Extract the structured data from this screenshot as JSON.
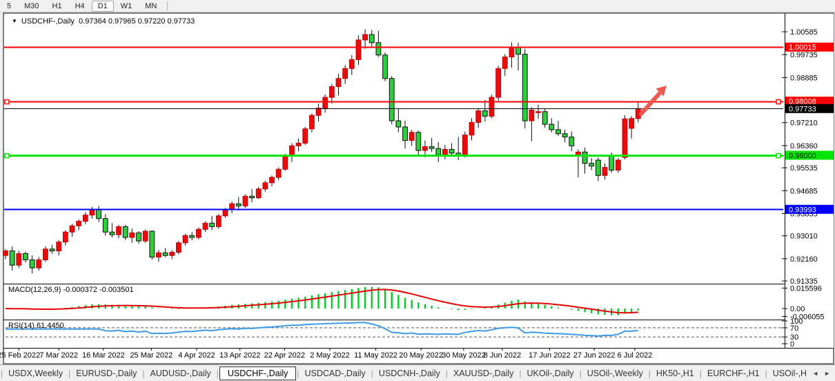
{
  "toolbar": {
    "timeframes": [
      "5",
      "M30",
      "H1",
      "H4",
      "D1",
      "W1",
      "MN"
    ],
    "active_timeframe": "D1"
  },
  "chart": {
    "dropdown_icon": "▼",
    "symbol_period": "USDCHF-,Daily",
    "ohlc_text": "0.97364 0.97965 0.97220 0.97733"
  },
  "indicators": {
    "macd": {
      "label": "MACD(12,26,9) -0.000372 -0.003501",
      "axis_labels": [
        {
          "text": "0.015596",
          "value": 0.015596
        },
        {
          "text": "0.00",
          "value": 0.0
        },
        {
          "text": "-0.006055",
          "value": -0.006055
        }
      ]
    },
    "rsi": {
      "label": "RSI(14) 61.4450",
      "axis_labels": [
        {
          "text": "100",
          "value": 100
        },
        {
          "text": "70",
          "value": 70
        },
        {
          "text": "30",
          "value": 30
        },
        {
          "text": "0",
          "value": 0
        }
      ],
      "levels": [
        70,
        30
      ]
    }
  },
  "colors": {
    "candle_up": "#ea0c0c",
    "candle_up_border": "#c40000",
    "candle_down": "#2fce3c",
    "candle_down_border": "#0b0b0b",
    "wick": "#0b0b0b",
    "macd_histogram": "#00cc22",
    "macd_signal": "#e60000",
    "rsi_line": "#3d9ae8",
    "arrow": "#f0584f",
    "axis_text": "#000000"
  },
  "chart_data": {
    "type": "candlestick",
    "symbol": "USDCHF-",
    "timeframe": "Daily",
    "ylim": {
      "top": 1.01251,
      "bottom": 0.91259
    },
    "y_ticks": [
      1.00585,
      0.99735,
      0.98885,
      0.9721,
      0.9636,
      0.95535,
      0.94685,
      0.93835,
      0.9301,
      0.9216,
      0.91335
    ],
    "x_ticks": [
      {
        "label": "25 Feb 2022",
        "i": 2
      },
      {
        "label": "7 Mar 2022",
        "i": 8
      },
      {
        "label": "16 Mar 2022",
        "i": 14.7
      },
      {
        "label": "25 Mar 2022",
        "i": 21.9
      },
      {
        "label": "4 Apr 2022",
        "i": 28.7
      },
      {
        "label": "13 Apr 2022",
        "i": 35.2
      },
      {
        "label": "22 Apr 2022",
        "i": 41.9
      },
      {
        "label": "2 May 2022",
        "i": 48.7
      },
      {
        "label": "11 May 2022",
        "i": 55.6
      },
      {
        "label": "20 May 2022",
        "i": 62.4
      },
      {
        "label": "30 May 2022",
        "i": 68.8
      },
      {
        "label": "8 Jun 2022",
        "i": 74.6
      },
      {
        "label": "17 Jun 2022",
        "i": 81.7
      },
      {
        "label": "27 Jun 2022",
        "i": 88.4
      },
      {
        "label": "6 Jul 2022",
        "i": 94.5
      }
    ],
    "hlines": [
      {
        "value": 1.00015,
        "label": "1.00015",
        "color": "#fe0000",
        "width": 2,
        "label_bg": "#fe0000",
        "label_fg": "#ffffff",
        "handles": false,
        "name": "resistance-1.00015"
      },
      {
        "value": 0.98008,
        "label": "0.98008",
        "color": "#fe0000",
        "width": 2,
        "label_bg": "#fe0000",
        "label_fg": "#ffffff",
        "handles": true,
        "name": "resistance-0.98008"
      },
      {
        "value": 0.97733,
        "label": "0.97733",
        "color": "#000000",
        "width": 1,
        "label_bg": "#000000",
        "label_fg": "#ffffff",
        "handles": false,
        "name": "current-price-line"
      },
      {
        "value": 0.96,
        "label": "0.96000",
        "color": "#00e600",
        "width": 3,
        "label_bg": "#00e600",
        "label_fg": "#000000",
        "handles": true,
        "name": "support-0.96000"
      },
      {
        "value": 0.93993,
        "label": "0.93993",
        "color": "#0000fe",
        "width": 2,
        "label_bg": "#0000fe",
        "label_fg": "#ffffff",
        "handles": false,
        "name": "support-0.93993"
      }
    ],
    "arrow": {
      "x1": 929,
      "y1": 147,
      "x2": 966,
      "y2": 106
    },
    "macd_params": [
      12,
      26,
      9
    ],
    "rsi_params": [
      14
    ],
    "candles": [
      [
        0.9228,
        0.9252,
        0.9215,
        0.9245
      ],
      [
        0.9245,
        0.9262,
        0.9172,
        0.9192
      ],
      [
        0.9192,
        0.9245,
        0.9182,
        0.9235
      ],
      [
        0.9235,
        0.9242,
        0.9202,
        0.9212
      ],
      [
        0.9212,
        0.9228,
        0.9162,
        0.9182
      ],
      [
        0.9182,
        0.9222,
        0.9172,
        0.9212
      ],
      [
        0.9212,
        0.9262,
        0.9205,
        0.9252
      ],
      [
        0.9252,
        0.9268,
        0.9235,
        0.9245
      ],
      [
        0.9245,
        0.9285,
        0.9228,
        0.9278
      ],
      [
        0.9278,
        0.9322,
        0.9265,
        0.9315
      ],
      [
        0.9315,
        0.9345,
        0.9298,
        0.9338
      ],
      [
        0.9338,
        0.9362,
        0.9322,
        0.9355
      ],
      [
        0.9355,
        0.9388,
        0.9345,
        0.9378
      ],
      [
        0.9378,
        0.9408,
        0.9365,
        0.9398
      ],
      [
        0.9398,
        0.9412,
        0.9352,
        0.9365
      ],
      [
        0.9365,
        0.9382,
        0.9302,
        0.9315
      ],
      [
        0.9315,
        0.9348,
        0.9295,
        0.9305
      ],
      [
        0.9305,
        0.9342,
        0.9292,
        0.9335
      ],
      [
        0.9335,
        0.9342,
        0.9285,
        0.9295
      ],
      [
        0.9295,
        0.9328,
        0.9275,
        0.9312
      ],
      [
        0.9312,
        0.9318,
        0.9272,
        0.9282
      ],
      [
        0.9282,
        0.9325,
        0.9275,
        0.9318
      ],
      [
        0.9318,
        0.9322,
        0.9212,
        0.9222
      ],
      [
        0.9222,
        0.9248,
        0.9205,
        0.9238
      ],
      [
        0.9238,
        0.9255,
        0.9222,
        0.9228
      ],
      [
        0.9228,
        0.9248,
        0.9215,
        0.924
      ],
      [
        0.924,
        0.9282,
        0.9232,
        0.9275
      ],
      [
        0.9275,
        0.9308,
        0.9265,
        0.9302
      ],
      [
        0.9302,
        0.9315,
        0.9285,
        0.9295
      ],
      [
        0.9295,
        0.9332,
        0.9288,
        0.9325
      ],
      [
        0.9325,
        0.9355,
        0.9315,
        0.9348
      ],
      [
        0.9348,
        0.9375,
        0.9322,
        0.9335
      ],
      [
        0.9335,
        0.9382,
        0.9328,
        0.9375
      ],
      [
        0.9375,
        0.9405,
        0.9368,
        0.9398
      ],
      [
        0.9398,
        0.9428,
        0.9385,
        0.942
      ],
      [
        0.942,
        0.9445,
        0.9395,
        0.9412
      ],
      [
        0.9412,
        0.9455,
        0.9405,
        0.9448
      ],
      [
        0.9448,
        0.9475,
        0.9425,
        0.9442
      ],
      [
        0.9442,
        0.9482,
        0.9438,
        0.9475
      ],
      [
        0.9475,
        0.9505,
        0.9465,
        0.9498
      ],
      [
        0.9498,
        0.9525,
        0.9485,
        0.9518
      ],
      [
        0.9518,
        0.9555,
        0.9508,
        0.9548
      ],
      [
        0.9548,
        0.9605,
        0.9542,
        0.9598
      ],
      [
        0.9598,
        0.9645,
        0.9575,
        0.9635
      ],
      [
        0.9635,
        0.9662,
        0.9615,
        0.9645
      ],
      [
        0.9645,
        0.9705,
        0.9638,
        0.9698
      ],
      [
        0.9698,
        0.9755,
        0.9685,
        0.9748
      ],
      [
        0.9748,
        0.9792,
        0.9725,
        0.9775
      ],
      [
        0.9775,
        0.9825,
        0.9758,
        0.9815
      ],
      [
        0.9815,
        0.9865,
        0.9792,
        0.9855
      ],
      [
        0.9855,
        0.9902,
        0.9822,
        0.9885
      ],
      [
        0.9885,
        0.9935,
        0.9865,
        0.9922
      ],
      [
        0.9922,
        0.9972,
        0.9898,
        0.9955
      ],
      [
        0.9955,
        1.0045,
        0.9935,
        1.0028
      ],
      [
        1.0028,
        1.0068,
        0.9995,
        1.0048
      ],
      [
        1.0048,
        1.0065,
        1.0002,
        1.0018
      ],
      [
        1.0018,
        1.0062,
        0.9965,
        0.9972
      ],
      [
        0.9972,
        0.9982,
        0.9875,
        0.9885
      ],
      [
        0.9885,
        0.9895,
        0.9715,
        0.9728
      ],
      [
        0.9728,
        0.9775,
        0.9685,
        0.9705
      ],
      [
        0.9705,
        0.9728,
        0.9625,
        0.9655
      ],
      [
        0.9655,
        0.9695,
        0.9635,
        0.9685
      ],
      [
        0.9685,
        0.9692,
        0.9595,
        0.9618
      ],
      [
        0.9618,
        0.9655,
        0.9592,
        0.9632
      ],
      [
        0.9632,
        0.9665,
        0.9612,
        0.9625
      ],
      [
        0.9625,
        0.9648,
        0.9575,
        0.9602
      ],
      [
        0.9602,
        0.9638,
        0.9585,
        0.9622
      ],
      [
        0.9622,
        0.9645,
        0.9595,
        0.9608
      ],
      [
        0.9608,
        0.9668,
        0.9582,
        0.9598
      ],
      [
        0.9598,
        0.9688,
        0.9592,
        0.9675
      ],
      [
        0.9675,
        0.9738,
        0.9655,
        0.9722
      ],
      [
        0.9722,
        0.9775,
        0.9702,
        0.9765
      ],
      [
        0.9765,
        0.9805,
        0.9725,
        0.9745
      ],
      [
        0.9745,
        0.9825,
        0.9738,
        0.9815
      ],
      [
        0.9815,
        0.9932,
        0.9802,
        0.9922
      ],
      [
        0.9922,
        0.9975,
        0.9895,
        0.9965
      ],
      [
        0.9965,
        1.0019,
        0.9925,
        1.0002
      ],
      [
        1.0002,
        1.0018,
        0.9915,
        0.9975
      ],
      [
        0.9975,
        0.9995,
        0.97,
        0.9728
      ],
      [
        0.9728,
        0.9778,
        0.9652,
        0.9768
      ],
      [
        0.9758,
        0.9788,
        0.9735,
        0.9762
      ],
      [
        0.9762,
        0.9775,
        0.9702,
        0.9715
      ],
      [
        0.9715,
        0.9738,
        0.9685,
        0.9695
      ],
      [
        0.9695,
        0.9728,
        0.9672,
        0.968
      ],
      [
        0.968,
        0.9695,
        0.9648,
        0.9668
      ],
      [
        0.9668,
        0.9688,
        0.9615,
        0.9635
      ],
      [
        0.9598,
        0.9622,
        0.9518,
        0.9612
      ],
      [
        0.9612,
        0.9628,
        0.9532,
        0.957
      ],
      [
        0.957,
        0.959,
        0.9545,
        0.956
      ],
      [
        0.9582,
        0.9592,
        0.9505,
        0.9525
      ],
      [
        0.9525,
        0.957,
        0.951,
        0.9555
      ],
      [
        0.9598,
        0.961,
        0.9535,
        0.9545
      ],
      [
        0.9545,
        0.959,
        0.9535,
        0.9582
      ],
      [
        0.9592,
        0.9748,
        0.9585,
        0.9735
      ],
      [
        0.97,
        0.9745,
        0.9662,
        0.97364
      ],
      [
        0.97364,
        0.97965,
        0.9722,
        0.97733
      ]
    ]
  },
  "tabbar": {
    "tabs": [
      "USDX,Weekly",
      "EURUSD-,Daily",
      "AUDUSD-,Daily",
      "USDCHF-,Daily",
      "USDCAD-,Daily",
      "USDCNH-,Daily",
      "XAUUSD-,Daily",
      "UKOil-,Daily",
      "USOil-,Weekly",
      "HK50-,H1",
      "EURCHF-,H1",
      "USOil-,H"
    ],
    "active_index": 3,
    "scroll_left_icon": "◄",
    "scroll_right_icon": "►"
  }
}
